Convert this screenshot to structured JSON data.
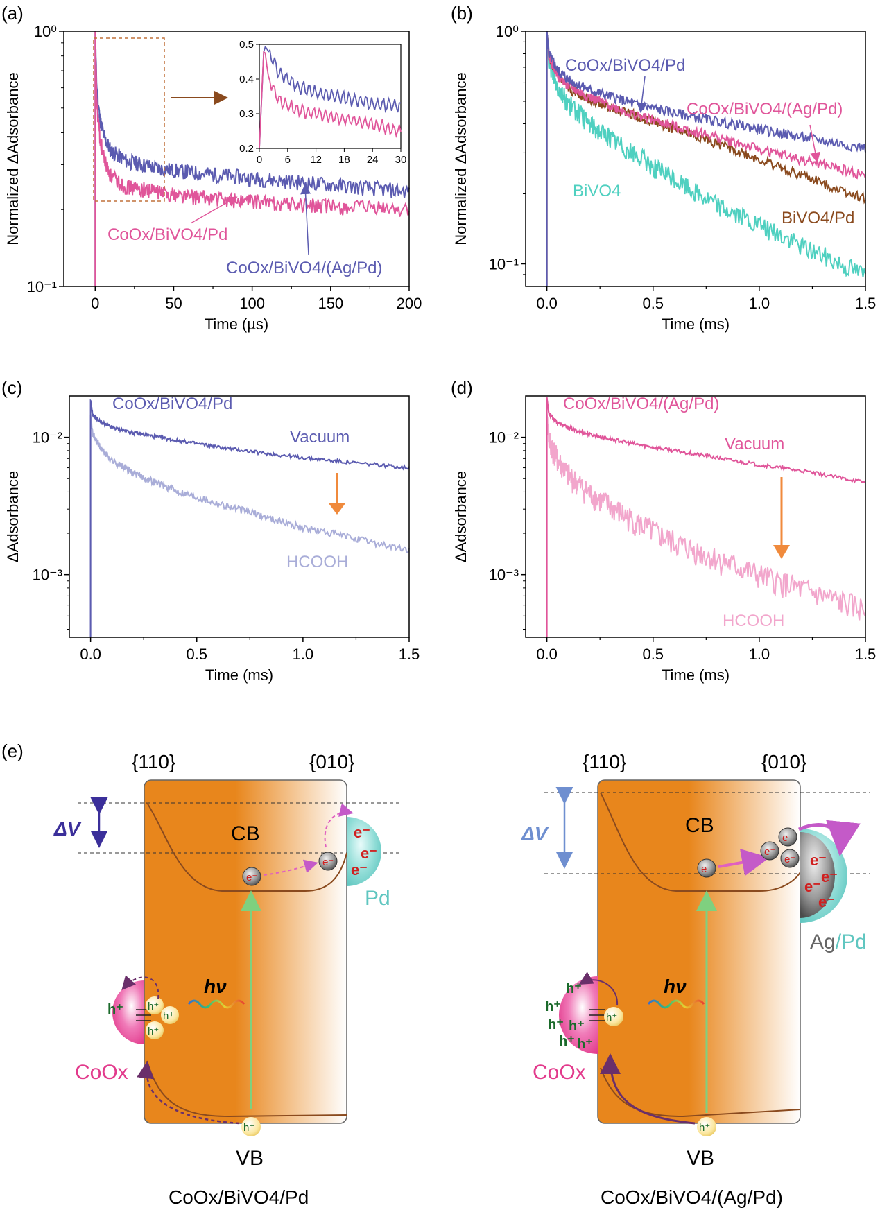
{
  "colors": {
    "blue": "#5b5bb0",
    "pink": "#e0559a",
    "teal": "#4fd0c0",
    "brown": "#8a4a1e",
    "light_blue": "#a9add8",
    "light_pink": "#f2a6cc",
    "orange_arrow": "#f08a3c",
    "bivo4_orange": "#e8861c",
    "pd_teal": "#5fc6c0",
    "coox_pink": "#e23a8c",
    "dv_blue_a": "#3b2f9a",
    "dv_blue_e": "#6f8fd0",
    "violet": "#c45ac8"
  },
  "panels": {
    "a": {
      "label": "(a)"
    },
    "b": {
      "label": "(b)"
    },
    "c": {
      "label": "(c)"
    },
    "d": {
      "label": "(d)"
    },
    "e": {
      "label": "(e)"
    }
  },
  "chart_data": [
    {
      "id": "a",
      "type": "line",
      "xlabel": "Time (µs)",
      "ylabel": "Normalized ΔAdsorbance",
      "xlim": [
        -20,
        200
      ],
      "xticks": [
        0,
        50,
        100,
        150,
        200
      ],
      "ylim": [
        0.1,
        1.0
      ],
      "yscale": "log",
      "ytick_labels": [
        "10⁰",
        "10⁻¹"
      ],
      "series": [
        {
          "name": "CoOx/BiVO4/(Ag/Pd)",
          "color": "blue",
          "x": [
            0,
            1,
            3,
            6,
            10,
            20,
            40,
            60,
            100,
            150,
            200
          ],
          "y": [
            1.0,
            0.6,
            0.45,
            0.38,
            0.34,
            0.31,
            0.29,
            0.28,
            0.265,
            0.25,
            0.235
          ]
        },
        {
          "name": "CoOx/BiVO4/Pd",
          "color": "pink",
          "x": [
            0,
            1,
            3,
            6,
            10,
            20,
            40,
            60,
            100,
            150,
            200
          ],
          "y": [
            1.0,
            0.52,
            0.38,
            0.31,
            0.27,
            0.245,
            0.235,
            0.225,
            0.215,
            0.205,
            0.2
          ]
        }
      ],
      "annotations": [
        {
          "text": "CoOx/BiVO4/Pd",
          "color": "pink"
        },
        {
          "text": "CoOx/BiVO4/(Ag/Pd)",
          "color": "blue"
        }
      ],
      "inset": {
        "xlim": [
          0,
          30
        ],
        "xticks": [
          0,
          6,
          12,
          18,
          24,
          30
        ],
        "ylim": [
          0.2,
          0.5
        ],
        "yticks": [
          0.2,
          0.3,
          0.4,
          0.5
        ],
        "ytick_labels": [
          "0.2",
          "0.3",
          "0.4",
          "0.5"
        ],
        "series": [
          {
            "color": "blue",
            "x": [
              0,
              1,
              2,
              4,
              8,
              12,
              18,
              24,
              30
            ],
            "y": [
              0.2,
              0.5,
              0.48,
              0.42,
              0.38,
              0.36,
              0.345,
              0.33,
              0.32
            ]
          },
          {
            "color": "pink",
            "x": [
              0,
              1,
              2,
              4,
              8,
              12,
              18,
              24,
              30
            ],
            "y": [
              0.2,
              0.5,
              0.4,
              0.34,
              0.31,
              0.3,
              0.285,
              0.27,
              0.25
            ]
          }
        ]
      }
    },
    {
      "id": "b",
      "type": "line",
      "xlabel": "Time (ms)",
      "ylabel": "Normalized ΔAdsorbance",
      "xlim": [
        -0.1,
        1.5
      ],
      "xticks": [
        0.0,
        0.5,
        1.0,
        1.5
      ],
      "xtick_labels": [
        "0.0",
        "0.5",
        "1.0",
        "1.5"
      ],
      "ylim": [
        0.08,
        1.0
      ],
      "yscale": "log",
      "ytick_labels": [
        "10⁰",
        "10⁻¹"
      ],
      "series": [
        {
          "name": "CoOx/BiVO4/Pd",
          "color": "blue",
          "x": [
            0,
            0.01,
            0.05,
            0.1,
            0.2,
            0.4,
            0.6,
            0.8,
            1.0,
            1.2,
            1.5
          ],
          "y": [
            1.0,
            0.8,
            0.68,
            0.62,
            0.56,
            0.49,
            0.445,
            0.41,
            0.38,
            0.35,
            0.315
          ]
        },
        {
          "name": "CoOx/BiVO4/(Ag/Pd)",
          "color": "pink",
          "x": [
            0,
            0.01,
            0.05,
            0.1,
            0.2,
            0.4,
            0.6,
            0.8,
            1.0,
            1.2,
            1.5
          ],
          "y": [
            1.0,
            0.78,
            0.65,
            0.58,
            0.52,
            0.44,
            0.39,
            0.35,
            0.31,
            0.28,
            0.24
          ]
        },
        {
          "name": "BiVO4/Pd",
          "color": "brown",
          "x": [
            0,
            0.01,
            0.05,
            0.1,
            0.2,
            0.4,
            0.6,
            0.8,
            1.0,
            1.2,
            1.5
          ],
          "y": [
            1.0,
            0.78,
            0.64,
            0.57,
            0.51,
            0.44,
            0.38,
            0.33,
            0.28,
            0.24,
            0.19
          ]
        },
        {
          "name": "BiVO4",
          "color": "teal",
          "x": [
            0,
            0.01,
            0.05,
            0.1,
            0.2,
            0.4,
            0.6,
            0.8,
            1.0,
            1.2,
            1.5
          ],
          "y": [
            1.0,
            0.74,
            0.58,
            0.49,
            0.4,
            0.3,
            0.23,
            0.18,
            0.145,
            0.12,
            0.09
          ]
        }
      ],
      "annotations": [
        {
          "text": "CoOx/BiVO4/Pd",
          "color": "blue"
        },
        {
          "text": "CoOx/BiVO4/(Ag/Pd)",
          "color": "pink"
        },
        {
          "text": "BiVO4",
          "color": "teal"
        },
        {
          "text": "BiVO4/Pd",
          "color": "brown"
        }
      ]
    },
    {
      "id": "c",
      "type": "line",
      "xlabel": "Time (ms)",
      "ylabel": "ΔAdsorbance",
      "xlim": [
        -0.1,
        1.5
      ],
      "xticks": [
        0.0,
        0.5,
        1.0,
        1.5
      ],
      "xtick_labels": [
        "0.0",
        "0.5",
        "1.0",
        "1.5"
      ],
      "ylim": [
        0.00035,
        0.02
      ],
      "yscale": "log",
      "ytick_labels": [
        "10⁻²",
        "10⁻³"
      ],
      "series": [
        {
          "name": "Vacuum",
          "color": "blue",
          "x": [
            0,
            0.01,
            0.05,
            0.1,
            0.2,
            0.4,
            0.6,
            0.8,
            1.0,
            1.2,
            1.5
          ],
          "y": [
            0.0185,
            0.0145,
            0.0128,
            0.0118,
            0.0108,
            0.0095,
            0.0085,
            0.0077,
            0.0071,
            0.0066,
            0.006
          ]
        },
        {
          "name": "HCOOH",
          "color": "light_blue",
          "x": [
            0,
            0.01,
            0.05,
            0.1,
            0.2,
            0.4,
            0.6,
            0.8,
            1.0,
            1.2,
            1.5
          ],
          "y": [
            0.0145,
            0.0105,
            0.0082,
            0.0068,
            0.0055,
            0.0041,
            0.0033,
            0.0027,
            0.0022,
            0.0019,
            0.0015
          ]
        }
      ],
      "annotations": [
        {
          "text": "CoOx/BiVO4/Pd",
          "color": "blue"
        },
        {
          "text": "Vacuum",
          "color": "blue"
        },
        {
          "text": "HCOOH",
          "color": "light_blue"
        }
      ]
    },
    {
      "id": "d",
      "type": "line",
      "xlabel": "Time (ms)",
      "ylabel": "ΔAdsorbance",
      "xlim": [
        -0.1,
        1.5
      ],
      "xticks": [
        0.0,
        0.5,
        1.0,
        1.5
      ],
      "xtick_labels": [
        "0.0",
        "0.5",
        "1.0",
        "1.5"
      ],
      "ylim": [
        0.00035,
        0.02
      ],
      "yscale": "log",
      "ytick_labels": [
        "10⁻²",
        "10⁻³"
      ],
      "series": [
        {
          "name": "Vacuum",
          "color": "pink",
          "x": [
            0,
            0.01,
            0.05,
            0.1,
            0.2,
            0.4,
            0.6,
            0.8,
            1.0,
            1.2,
            1.5
          ],
          "y": [
            0.0195,
            0.0148,
            0.0128,
            0.0117,
            0.0105,
            0.009,
            0.008,
            0.0071,
            0.0063,
            0.0057,
            0.0047
          ]
        },
        {
          "name": "HCOOH",
          "color": "light_pink",
          "x": [
            0,
            0.01,
            0.05,
            0.1,
            0.2,
            0.4,
            0.6,
            0.8,
            1.0,
            1.2,
            1.5
          ],
          "y": [
            0.0148,
            0.0095,
            0.0068,
            0.0053,
            0.0039,
            0.0025,
            0.0017,
            0.0013,
            0.00098,
            0.00078,
            0.00055
          ]
        }
      ],
      "annotations": [
        {
          "text": "CoOx/BiVO4/(Ag/Pd)",
          "color": "pink"
        },
        {
          "text": "Vacuum",
          "color": "pink"
        },
        {
          "text": "HCOOH",
          "color": "light_pink"
        }
      ]
    }
  ],
  "diagram_e": {
    "left": {
      "facet_110": "{110}",
      "facet_010": "{010}",
      "delta_v": "ΔV",
      "cb": "CB",
      "vb": "VB",
      "hv": "hν",
      "electron": "e⁻",
      "hole": "h⁺",
      "cocatalyst": "Pd",
      "hole_catalyst": "CoOx",
      "caption": "CoOx/BiVO4/Pd"
    },
    "right": {
      "facet_110": "{110}",
      "facet_010": "{010}",
      "delta_v": "ΔV",
      "cb": "CB",
      "vb": "VB",
      "hv": "hν",
      "electron": "e⁻",
      "hole": "h⁺",
      "cocatalyst_ag": "Ag",
      "cocatalyst_sep": "/",
      "cocatalyst_pd": "Pd",
      "hole_catalyst": "CoOx",
      "caption": "CoOx/BiVO4/(Ag/Pd)"
    }
  }
}
